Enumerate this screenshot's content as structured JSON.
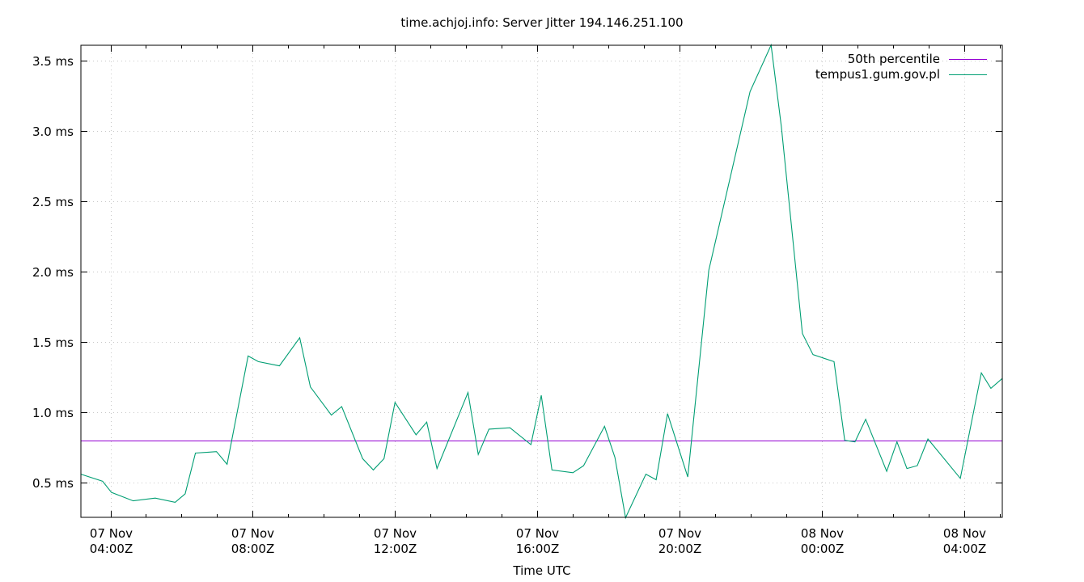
{
  "chart_data": {
    "type": "line",
    "title": "time.achjoj.info: Server Jitter 194.146.251.100",
    "xlabel": "Time UTC",
    "ylabel": "",
    "ylim": [
      0.253,
      3.609
    ],
    "grid": true,
    "legend_position": "top-right",
    "y_ticks": [
      {
        "value": 0.5,
        "label": "0.5 ms"
      },
      {
        "value": 1.0,
        "label": "1.0 ms"
      },
      {
        "value": 1.5,
        "label": "1.5 ms"
      },
      {
        "value": 2.0,
        "label": "2.0 ms"
      },
      {
        "value": 2.5,
        "label": "2.5 ms"
      },
      {
        "value": 3.0,
        "label": "3.0 ms"
      },
      {
        "value": 3.5,
        "label": "3.5 ms"
      }
    ],
    "x_range_hours": [
      3.17,
      29.07
    ],
    "x_ticks": [
      {
        "hour": 4,
        "date": "07 Nov",
        "time": "04:00Z"
      },
      {
        "hour": 8,
        "date": "07 Nov",
        "time": "08:00Z"
      },
      {
        "hour": 12,
        "date": "07 Nov",
        "time": "12:00Z"
      },
      {
        "hour": 16,
        "date": "07 Nov",
        "time": "16:00Z"
      },
      {
        "hour": 20,
        "date": "07 Nov",
        "time": "20:00Z"
      },
      {
        "hour": 24,
        "date": "08 Nov",
        "time": "00:00Z"
      },
      {
        "hour": 28,
        "date": "08 Nov",
        "time": "04:00Z"
      }
    ],
    "series": [
      {
        "name": "50th percentile",
        "color": "#9400d3",
        "constant": 0.8
      },
      {
        "name": "tempus1.gum.gov.pl",
        "color": "#009e73",
        "x_hours": [
          3.17,
          3.78,
          4.03,
          4.64,
          5.26,
          5.82,
          6.1,
          6.39,
          6.98,
          7.28,
          7.87,
          8.16,
          8.75,
          9.32,
          9.62,
          10.21,
          10.5,
          11.09,
          11.39,
          11.69,
          12.0,
          12.59,
          12.89,
          13.18,
          14.05,
          14.34,
          14.64,
          15.23,
          15.82,
          16.11,
          16.41,
          17.0,
          17.3,
          17.89,
          18.18,
          18.48,
          19.05,
          19.34,
          19.66,
          20.23,
          20.82,
          21.98,
          22.57,
          22.86,
          23.45,
          23.75,
          24.34,
          24.64,
          24.93,
          25.23,
          25.82,
          26.11,
          26.39,
          26.68,
          26.98,
          27.89,
          28.48,
          28.75,
          29.07
        ],
        "values": [
          0.56,
          0.51,
          0.43,
          0.37,
          0.39,
          0.36,
          0.42,
          0.71,
          0.72,
          0.63,
          1.4,
          1.36,
          1.33,
          1.53,
          1.18,
          0.98,
          1.04,
          0.67,
          0.59,
          0.67,
          1.07,
          0.84,
          0.93,
          0.6,
          1.14,
          0.7,
          0.88,
          0.89,
          0.77,
          1.12,
          0.59,
          0.57,
          0.62,
          0.9,
          0.68,
          0.25,
          0.56,
          0.52,
          0.99,
          0.54,
          2.01,
          3.28,
          3.61,
          3.03,
          1.56,
          1.41,
          1.36,
          0.8,
          0.79,
          0.95,
          0.58,
          0.79,
          0.6,
          0.62,
          0.81,
          0.53,
          1.28,
          1.17,
          1.24
        ]
      }
    ]
  },
  "legend": {
    "items": [
      {
        "label": "50th percentile",
        "color": "#9400d3"
      },
      {
        "label": "tempus1.gum.gov.pl",
        "color": "#009e73"
      }
    ]
  }
}
